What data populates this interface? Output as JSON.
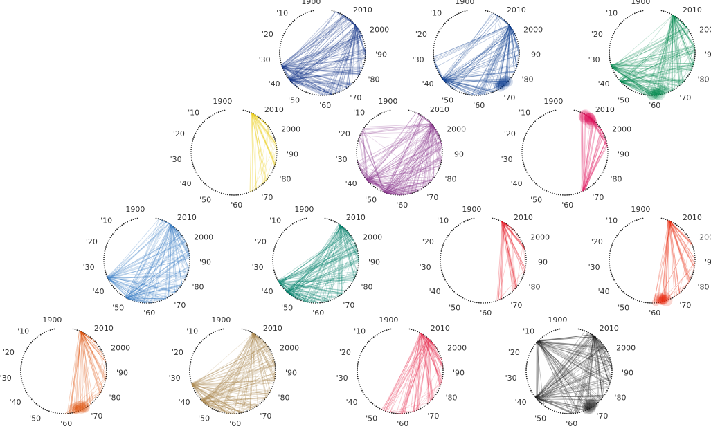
{
  "chart_data": {
    "type": "chord",
    "axis": {
      "labels": [
        "1900",
        "'10",
        "'20",
        "'30",
        "'40",
        "'50",
        "'60",
        "'70",
        "'80",
        "'90",
        "2000",
        "2010"
      ],
      "start_year": 1900,
      "end_year": 2018,
      "direction": "counterclockwise from top",
      "dotted_ring": true
    },
    "panels": [
      {
        "color": "#1a3a8c",
        "hubs": [
          2004,
          1934,
          1941
        ],
        "targets": [
          1944,
          1961,
          1966,
          1972,
          1981,
          1990,
          1999,
          2008,
          2014
        ],
        "spread": 0.35
      },
      {
        "color": "#0a3d91",
        "hubs": [
          2004,
          1941
        ],
        "targets": [
          1932,
          1946,
          1958,
          1963,
          1968,
          1975,
          1983,
          1992,
          2000,
          2012
        ],
        "spread": 0.35,
        "blob": 1974
      },
      {
        "color": "#008a4f",
        "hubs": [
          2012,
          1934,
          1942
        ],
        "targets": [
          1958,
          1962,
          1968,
          1975,
          1984,
          1993,
          2003
        ],
        "spread": 0.3,
        "blob": 1962
      },
      {
        "color": "#e8c800",
        "hubs": [
          2013
        ],
        "targets": [
          1968,
          1976,
          1985,
          1994,
          2004
        ],
        "spread": 0.25
      },
      {
        "color": "#8b3a8f",
        "hubs": [
          2005,
          1942,
          1952
        ],
        "targets": [
          1918,
          1934,
          1957,
          1962,
          1968,
          1975,
          1986,
          1995,
          2001,
          2012
        ],
        "spread": 0.5
      },
      {
        "color": "#e0105a",
        "hubs": [
          2010,
          1968
        ],
        "targets": [
          1995,
          2001,
          2007,
          2013
        ],
        "spread": 0.2,
        "blob": 2010
      },
      {
        "color": "#3a7cc4",
        "hubs": [
          2010,
          1936,
          1949
        ],
        "targets": [
          1952,
          1960,
          1968,
          1976,
          1985,
          1994,
          2002,
          2014
        ],
        "spread": 0.4
      },
      {
        "color": "#00806a",
        "hubs": [
          2010,
          1938,
          1944
        ],
        "targets": [
          1948,
          1955,
          1963,
          1972,
          1983,
          1992,
          1998,
          2004
        ],
        "spread": 0.45
      },
      {
        "color": "#e5101c",
        "hubs": [
          2013
        ],
        "targets": [
          1967,
          1976,
          1986,
          1997,
          2007
        ],
        "spread": 0.2
      },
      {
        "color": "#e8280c",
        "hubs": [
          2014
        ],
        "targets": [
          1962,
          1966,
          1972,
          1980,
          1989,
          2000
        ],
        "spread": 0.3,
        "blob": 1963
      },
      {
        "color": "#e05008",
        "hubs": [
          2014
        ],
        "targets": [
          1960,
          1966,
          1972,
          1980,
          1988,
          1997,
          2006
        ],
        "spread": 0.3,
        "blob": 1967
      },
      {
        "color": "#a8844a",
        "hubs": [
          2012,
          1934,
          1943
        ],
        "targets": [
          1948,
          1956,
          1962,
          1970,
          1978,
          1987,
          1996,
          2004
        ],
        "spread": 0.4
      },
      {
        "color": "#e83a5a",
        "hubs": [
          2012,
          2008
        ],
        "targets": [
          1952,
          1959,
          1966,
          1975,
          1985,
          1994,
          2003
        ],
        "spread": 0.25
      },
      {
        "color": "#1a1a1a",
        "hubs": [
          2010,
          1912,
          1941
        ],
        "targets": [
          1944,
          1962,
          1968,
          1976,
          1985,
          1994,
          2002,
          2012
        ],
        "spread": 0.35,
        "blob": 1970
      }
    ]
  }
}
